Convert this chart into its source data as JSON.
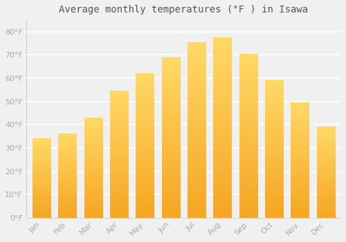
{
  "title": "Average monthly temperatures (°F ) in Isawa",
  "months": [
    "Jan",
    "Feb",
    "Mar",
    "Apr",
    "May",
    "Jun",
    "Jul",
    "Aug",
    "Sep",
    "Oct",
    "Nov",
    "Dec"
  ],
  "values": [
    34,
    36,
    43,
    54.5,
    62,
    69,
    75.5,
    77.5,
    70.5,
    59,
    49.5,
    39
  ],
  "bar_color_bottom": "#F5A623",
  "bar_color_top": "#FFD966",
  "ylim": [
    0,
    85
  ],
  "yticks": [
    0,
    10,
    20,
    30,
    40,
    50,
    60,
    70,
    80
  ],
  "ylabel_suffix": "°F",
  "background_color": "#f0f0f0",
  "grid_color": "#ffffff",
  "tick_color": "#aaaaaa",
  "title_fontsize": 10,
  "tick_fontsize": 8,
  "bar_width": 0.7
}
